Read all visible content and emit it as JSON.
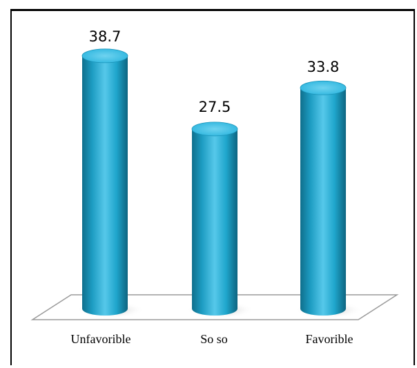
{
  "chart_data": {
    "type": "bar",
    "style": "3d-cylinder",
    "categories": [
      "Unfavorible",
      "So so",
      "Favorible"
    ],
    "values": [
      38.7,
      27.5,
      33.8
    ],
    "data_labels": [
      "38.7",
      "27.5",
      "33.8"
    ],
    "title": "",
    "xlabel": "",
    "ylabel": "",
    "ylim": [
      0,
      40
    ],
    "grid": false,
    "legend": "none",
    "colors": {
      "bar_main": "#1fa6cc",
      "bar_light": "#56c8ea",
      "bar_dark": "#0f6f8c",
      "bar_top": "#2cb5de",
      "floor_line": "#9a9a9a",
      "shadow": "#c9c9c9"
    }
  }
}
